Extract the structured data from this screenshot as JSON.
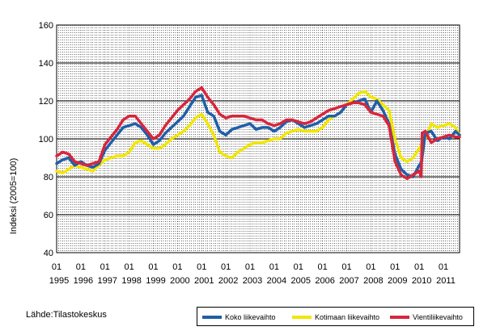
{
  "chart_data": {
    "type": "line",
    "title": "",
    "ylabel": "Indeksi (2005=100)",
    "xlabel": "",
    "ylim": [
      40,
      160
    ],
    "yticks": [
      40,
      60,
      80,
      100,
      120,
      140,
      160
    ],
    "xlim": [
      1995.0,
      2011.67
    ],
    "x_tick_month": "01",
    "x_tick_years": [
      "1995",
      "1996",
      "1997",
      "1998",
      "1999",
      "2000",
      "2001",
      "2002",
      "2003",
      "2004",
      "2005",
      "2006",
      "2007",
      "2008",
      "2009",
      "2010",
      "2011"
    ],
    "grid": "vertical dotted monthly, horizontal solid major",
    "legend": "bottom-right",
    "series": [
      {
        "name": "Koko liikevaihto",
        "color": "#1f5fa8",
        "x": [
          1995.0,
          1995.25,
          1995.5,
          1995.75,
          1996.0,
          1996.25,
          1996.5,
          1996.75,
          1997.0,
          1997.25,
          1997.5,
          1997.75,
          1998.0,
          1998.25,
          1998.5,
          1998.75,
          1999.0,
          1999.25,
          1999.5,
          1999.75,
          2000.0,
          2000.25,
          2000.5,
          2000.75,
          2001.0,
          2001.25,
          2001.5,
          2001.75,
          2002.0,
          2002.25,
          2002.5,
          2002.75,
          2003.0,
          2003.25,
          2003.5,
          2003.75,
          2004.0,
          2004.25,
          2004.5,
          2004.75,
          2005.0,
          2005.25,
          2005.5,
          2005.75,
          2006.0,
          2006.25,
          2006.5,
          2006.75,
          2007.0,
          2007.25,
          2007.5,
          2007.75,
          2008.0,
          2008.25,
          2008.5,
          2008.75,
          2009.0,
          2009.25,
          2009.5,
          2009.75,
          2010.0,
          2010.1,
          2010.25,
          2010.5,
          2010.75,
          2011.0,
          2011.25,
          2011.5,
          2011.67
        ],
        "values": [
          87,
          89,
          90,
          86,
          88,
          86,
          85,
          87,
          94,
          98,
          102,
          106,
          107,
          108,
          106,
          102,
          97,
          99,
          103,
          106,
          109,
          112,
          117,
          122,
          123,
          114,
          112,
          104,
          102,
          105,
          106,
          107,
          108,
          105,
          106,
          106,
          104,
          106,
          109,
          110,
          108,
          106,
          107,
          108,
          110,
          112,
          112,
          114,
          118,
          119,
          120,
          121,
          114,
          120,
          115,
          108,
          92,
          84,
          81,
          80,
          86,
          88,
          103,
          104,
          99,
          101,
          100,
          104,
          102
        ]
      },
      {
        "name": "Kotimaan liikevaihto",
        "color": "#f2e600",
        "x": [
          1995.0,
          1995.25,
          1995.5,
          1995.75,
          1996.0,
          1996.25,
          1996.5,
          1996.75,
          1997.0,
          1997.25,
          1997.5,
          1997.75,
          1998.0,
          1998.25,
          1998.5,
          1998.75,
          1999.0,
          1999.25,
          1999.5,
          1999.75,
          2000.0,
          2000.25,
          2000.5,
          2000.75,
          2001.0,
          2001.25,
          2001.5,
          2001.75,
          2002.0,
          2002.25,
          2002.5,
          2002.75,
          2003.0,
          2003.25,
          2003.5,
          2003.75,
          2004.0,
          2004.25,
          2004.5,
          2004.75,
          2005.0,
          2005.25,
          2005.5,
          2005.75,
          2006.0,
          2006.25,
          2006.5,
          2006.75,
          2007.0,
          2007.25,
          2007.5,
          2007.75,
          2008.0,
          2008.25,
          2008.5,
          2008.75,
          2009.0,
          2009.25,
          2009.5,
          2009.75,
          2010.0,
          2010.25,
          2010.5,
          2010.75,
          2011.0,
          2011.25,
          2011.5,
          2011.67
        ],
        "values": [
          83,
          82,
          84,
          86,
          85,
          84,
          83,
          86,
          89,
          90,
          91,
          91,
          93,
          98,
          99,
          97,
          95,
          95,
          97,
          100,
          102,
          104,
          107,
          111,
          113,
          108,
          102,
          93,
          91,
          90,
          93,
          95,
          97,
          98,
          98,
          99,
          100,
          100,
          103,
          104,
          105,
          104,
          104,
          104,
          106,
          110,
          112,
          114,
          118,
          121,
          124,
          125,
          122,
          121,
          118,
          115,
          100,
          90,
          88,
          90,
          95,
          100,
          108,
          106,
          107,
          108,
          106,
          102
        ]
      },
      {
        "name": "Vientiliikevaihto",
        "color": "#d7263d",
        "x": [
          1995.0,
          1995.25,
          1995.5,
          1995.75,
          1996.0,
          1996.25,
          1996.5,
          1996.75,
          1997.0,
          1997.25,
          1997.5,
          1997.75,
          1998.0,
          1998.25,
          1998.5,
          1998.75,
          1999.0,
          1999.25,
          1999.5,
          1999.75,
          2000.0,
          2000.25,
          2000.5,
          2000.75,
          2001.0,
          2001.25,
          2001.5,
          2001.75,
          2002.0,
          2002.25,
          2002.5,
          2002.75,
          2003.0,
          2003.25,
          2003.5,
          2003.75,
          2004.0,
          2004.25,
          2004.5,
          2004.75,
          2005.0,
          2005.25,
          2005.5,
          2005.75,
          2006.0,
          2006.25,
          2006.5,
          2006.75,
          2007.0,
          2007.25,
          2007.5,
          2007.75,
          2008.0,
          2008.25,
          2008.5,
          2008.75,
          2009.0,
          2009.25,
          2009.5,
          2009.75,
          2010.0,
          2010.08,
          2010.12,
          2010.25,
          2010.5,
          2010.75,
          2011.0,
          2011.25,
          2011.5,
          2011.67
        ],
        "values": [
          91,
          93,
          92,
          88,
          87,
          86,
          87,
          88,
          97,
          101,
          105,
          110,
          112,
          112,
          108,
          104,
          100,
          102,
          107,
          111,
          115,
          118,
          121,
          125,
          127,
          122,
          118,
          113,
          111,
          112,
          112,
          112,
          111,
          110,
          110,
          108,
          107,
          108,
          110,
          110,
          109,
          108,
          109,
          111,
          113,
          115,
          116,
          117,
          118,
          119,
          119,
          118,
          114,
          113,
          112,
          107,
          88,
          81,
          79,
          81,
          83,
          80,
          103,
          104,
          98,
          100,
          101,
          102,
          101,
          101
        ]
      }
    ]
  },
  "source_text": "Lähde:Tilastokeskus"
}
